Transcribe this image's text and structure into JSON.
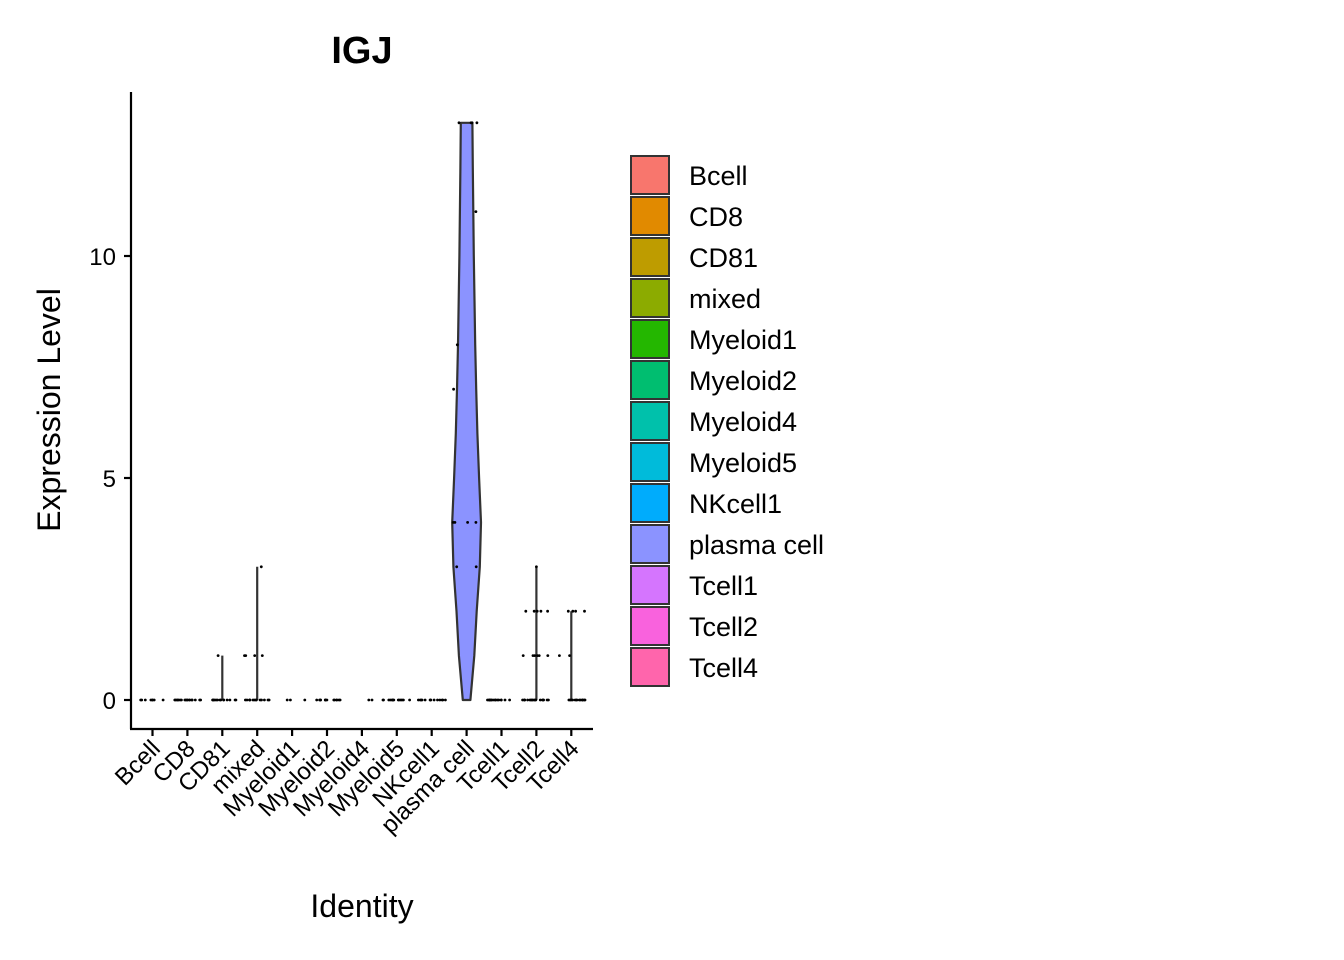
{
  "chart_data": {
    "type": "violin",
    "title": "IGJ",
    "xlabel": "Identity",
    "ylabel": "Expression Level",
    "ylim": [
      -0.7,
      13.6
    ],
    "yticks": [
      0,
      5,
      10
    ],
    "categories": [
      "Bcell",
      "CD8",
      "CD81",
      "mixed",
      "Myeloid1",
      "Myeloid2",
      "Myeloid4",
      "Myeloid5",
      "NKcell1",
      "plasma cell",
      "Tcell1",
      "Tcell2",
      "Tcell4"
    ],
    "colors": [
      "#F8766D",
      "#E18A00",
      "#BE9C00",
      "#8CAB00",
      "#24B700",
      "#00BE70",
      "#00C1AB",
      "#00BBDA",
      "#00ACFC",
      "#8B93FF",
      "#D575FE",
      "#F962DD",
      "#FF65AC"
    ],
    "violins": [
      {
        "category": "Bcell",
        "max": 0
      },
      {
        "category": "CD8",
        "max": 0
      },
      {
        "category": "CD81",
        "max": 1
      },
      {
        "category": "mixed",
        "max": 3
      },
      {
        "category": "Myeloid1",
        "max": 0
      },
      {
        "category": "Myeloid2",
        "max": 0
      },
      {
        "category": "Myeloid4",
        "max": 0
      },
      {
        "category": "Myeloid5",
        "max": 0
      },
      {
        "category": "NKcell1",
        "max": 0
      },
      {
        "category": "plasma cell",
        "max": 13,
        "density": [
          [
            0,
            0.16
          ],
          [
            1,
            0.32
          ],
          [
            2,
            0.42
          ],
          [
            3,
            0.55
          ],
          [
            4,
            0.6
          ],
          [
            5,
            0.52
          ],
          [
            6,
            0.45
          ],
          [
            7,
            0.4
          ],
          [
            8,
            0.36
          ],
          [
            9,
            0.33
          ],
          [
            10,
            0.3
          ],
          [
            11,
            0.28
          ],
          [
            12,
            0.26
          ],
          [
            13,
            0.24
          ]
        ]
      },
      {
        "category": "Tcell1",
        "max": 0
      },
      {
        "category": "Tcell2",
        "max": 3
      },
      {
        "category": "Tcell4",
        "max": 2
      }
    ],
    "points": [
      {
        "category": "Bcell",
        "y": 0,
        "n": 8
      },
      {
        "category": "CD8",
        "y": 0,
        "n": 18
      },
      {
        "category": "CD81",
        "y": 0,
        "n": 14
      },
      {
        "category": "CD81",
        "y": 1,
        "n": 1
      },
      {
        "category": "mixed",
        "y": 0,
        "n": 14
      },
      {
        "category": "mixed",
        "y": 1,
        "n": 4
      },
      {
        "category": "mixed",
        "y": 3,
        "n": 1
      },
      {
        "category": "Myeloid1",
        "y": 0,
        "n": 3
      },
      {
        "category": "Myeloid2",
        "y": 0,
        "n": 14
      },
      {
        "category": "Myeloid4",
        "y": 0,
        "n": 2
      },
      {
        "category": "Myeloid5",
        "y": 0,
        "n": 14
      },
      {
        "category": "NKcell1",
        "y": 0,
        "n": 14
      },
      {
        "category": "plasma cell",
        "y": 13,
        "n": 4
      },
      {
        "category": "plasma cell",
        "y": 11,
        "n": 1
      },
      {
        "category": "plasma cell",
        "y": 8,
        "n": 1
      },
      {
        "category": "plasma cell",
        "y": 7,
        "n": 1
      },
      {
        "category": "plasma cell",
        "y": 4,
        "n": 4
      },
      {
        "category": "plasma cell",
        "y": 3,
        "n": 2
      },
      {
        "category": "Tcell1",
        "y": 0,
        "n": 16
      },
      {
        "category": "Tcell2",
        "y": 0,
        "n": 18
      },
      {
        "category": "Tcell2",
        "y": 1,
        "n": 6
      },
      {
        "category": "Tcell2",
        "y": 2,
        "n": 5
      },
      {
        "category": "Tcell2",
        "y": 3,
        "n": 1
      },
      {
        "category": "Tcell4",
        "y": 0,
        "n": 14
      },
      {
        "category": "Tcell4",
        "y": 1,
        "n": 2
      },
      {
        "category": "Tcell4",
        "y": 2,
        "n": 4
      }
    ],
    "legend": {
      "placement": "right",
      "entries": [
        "Bcell",
        "CD8",
        "CD81",
        "mixed",
        "Myeloid1",
        "Myeloid2",
        "Myeloid4",
        "Myeloid5",
        "NKcell1",
        "plasma cell",
        "Tcell1",
        "Tcell2",
        "Tcell4"
      ]
    },
    "grid": false
  }
}
